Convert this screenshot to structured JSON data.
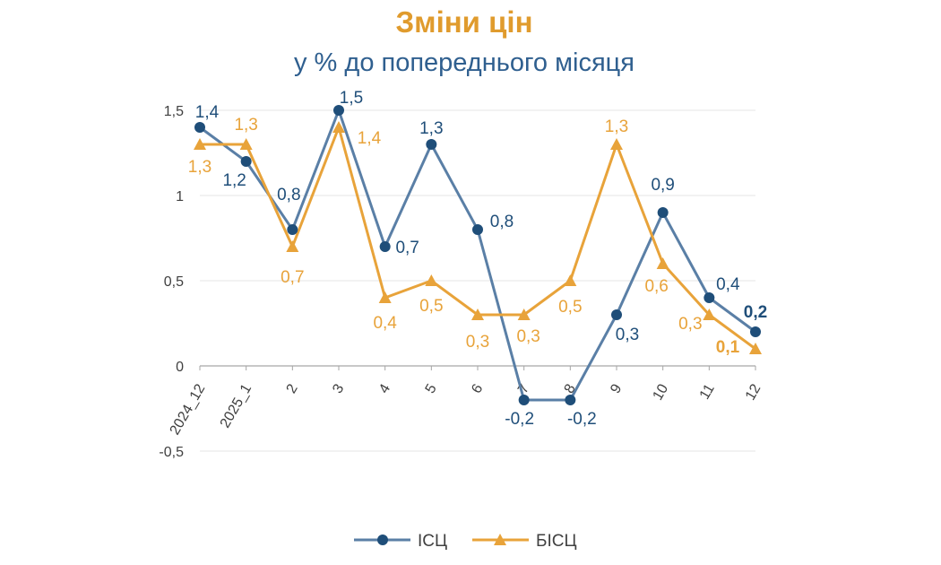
{
  "chart_data": {
    "type": "line",
    "title": "Зміни цін",
    "subtitle": "у % до попереднього місяця",
    "categories": [
      "2024_12",
      "2025_1",
      "2",
      "3",
      "4",
      "5",
      "6",
      "7",
      "8",
      "9",
      "10",
      "11",
      "12"
    ],
    "series": [
      {
        "name": "ІСЦ",
        "color": "#1F4E79",
        "line_color": "#5A7FA6",
        "marker": "circle",
        "values": [
          1.4,
          1.2,
          0.8,
          1.5,
          0.7,
          1.3,
          0.8,
          -0.2,
          -0.2,
          0.3,
          0.9,
          0.4,
          0.2
        ],
        "labels": [
          "1,4",
          "1,2",
          "0,8",
          "1,5",
          "0,7",
          "1,3",
          "0,8",
          "-0,2",
          "-0,2",
          "0,3",
          "0,9",
          "0,4",
          "0,2"
        ]
      },
      {
        "name": "БІСЦ",
        "color": "#E8A33A",
        "line_color": "#E8A33A",
        "marker": "triangle",
        "values": [
          1.3,
          1.3,
          0.7,
          1.4,
          0.4,
          0.5,
          0.3,
          0.3,
          0.5,
          1.3,
          0.6,
          0.3,
          0.1
        ],
        "labels": [
          "1,3",
          "1,3",
          "0,7",
          "1,4",
          "0,4",
          "0,5",
          "0,3",
          "0,3",
          "0,5",
          "1,3",
          "0,6",
          "0,3",
          "0,1"
        ]
      }
    ],
    "yticks": [
      -0.5,
      0,
      0.5,
      1,
      1.5
    ],
    "ytick_labels": [
      "-0,5",
      "0",
      "0,5",
      "1",
      "1,5"
    ],
    "ylim": [
      -0.5,
      1.5
    ],
    "grid": true,
    "legend": "bottom",
    "xlabel": "",
    "ylabel": ""
  }
}
